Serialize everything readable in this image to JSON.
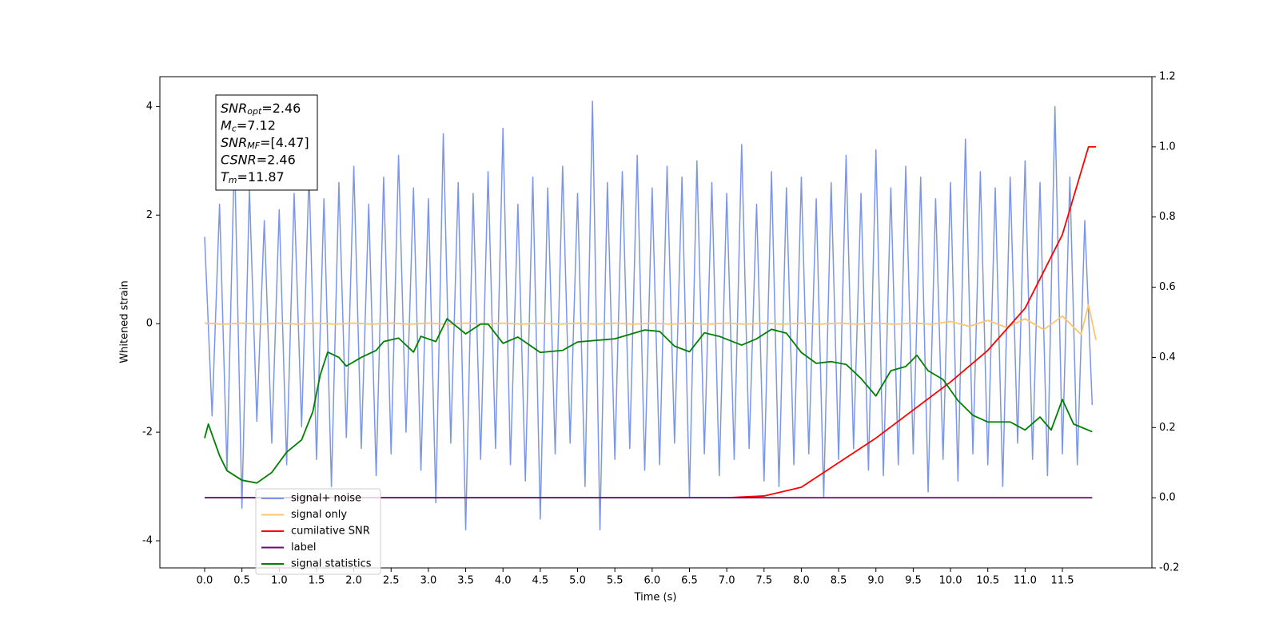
{
  "chart_data": {
    "type": "line",
    "xlabel": "Time (s)",
    "ylabel": "Whitened strain",
    "xlim": [
      -0.6,
      12.7
    ],
    "ylim": [
      -4.5,
      4.55
    ],
    "y2lim": [
      -0.2,
      1.2
    ],
    "xticks": [
      {
        "value": 0,
        "label": "0.0"
      },
      0.5,
      {
        "value": 1,
        "label": "1.0"
      },
      1.5,
      {
        "value": 2,
        "label": "2.0"
      },
      2.5,
      {
        "value": 3,
        "label": "3.0"
      },
      3.5,
      {
        "value": 4,
        "label": "4.0"
      },
      4.5,
      {
        "value": 5,
        "label": "5.0"
      },
      5.5,
      {
        "value": 6,
        "label": "6.0"
      },
      6.5,
      {
        "value": 7,
        "label": "7.0"
      },
      7.5,
      {
        "value": 8,
        "label": "8.0"
      },
      8.5,
      {
        "value": 9,
        "label": "9.0"
      },
      9.5,
      {
        "value": 10,
        "label": "10.0"
      },
      10.5,
      {
        "value": 11,
        "label": "11.0"
      },
      11.5
    ],
    "yticks": [
      -4,
      -2,
      0,
      2,
      4
    ],
    "y2ticks": [
      -0.2,
      {
        "value": 0,
        "label": "0.0"
      },
      0.2,
      0.4,
      0.6,
      0.8,
      {
        "value": 1,
        "label": "1.0"
      },
      1.2
    ],
    "legend": "lower left",
    "annotation": [
      {
        "symbol": "SNR",
        "sub": "opt",
        "text": "=2.46"
      },
      {
        "symbol": "M",
        "sub": "c",
        "text": "=7.12"
      },
      {
        "symbol": "SNR",
        "sub": "MF",
        "text": "=[4.47]"
      },
      {
        "symbol": "CSNR",
        "text": "=2.46"
      },
      {
        "symbol": "T",
        "sub": "m",
        "text": "=11.87"
      }
    ],
    "series": [
      {
        "name": "signal+ noise",
        "color": "#7b96e8",
        "axis": "y",
        "x": [
          0.0,
          0.1,
          0.2,
          0.3,
          0.4,
          0.5,
          0.6,
          0.7,
          0.8,
          0.9,
          1.0,
          1.1,
          1.2,
          1.3,
          1.4,
          1.5,
          1.6,
          1.7,
          1.8,
          1.9,
          2.0,
          2.1,
          2.2,
          2.3,
          2.4,
          2.5,
          2.6,
          2.7,
          2.8,
          2.9,
          3.0,
          3.1,
          3.2,
          3.3,
          3.4,
          3.5,
          3.6,
          3.7,
          3.8,
          3.9,
          4.0,
          4.1,
          4.2,
          4.3,
          4.4,
          4.5,
          4.6,
          4.7,
          4.8,
          4.9,
          5.0,
          5.1,
          5.2,
          5.3,
          5.4,
          5.5,
          5.6,
          5.7,
          5.8,
          5.9,
          6.0,
          6.1,
          6.2,
          6.3,
          6.4,
          6.5,
          6.6,
          6.7,
          6.8,
          6.9,
          7.0,
          7.1,
          7.2,
          7.3,
          7.4,
          7.5,
          7.6,
          7.7,
          7.8,
          7.9,
          8.0,
          8.1,
          8.2,
          8.3,
          8.4,
          8.5,
          8.6,
          8.7,
          8.8,
          8.9,
          9.0,
          9.1,
          9.2,
          9.3,
          9.4,
          9.5,
          9.6,
          9.7,
          9.8,
          9.9,
          10.0,
          10.1,
          10.2,
          10.3,
          10.4,
          10.5,
          10.6,
          10.7,
          10.8,
          10.9,
          11.0,
          11.1,
          11.2,
          11.3,
          11.4,
          11.5,
          11.6,
          11.7,
          11.8,
          11.9
        ],
        "values": [
          1.6,
          -1.7,
          2.2,
          -2.7,
          3.2,
          -3.4,
          2.5,
          -1.8,
          1.9,
          -2.2,
          2.1,
          -2.6,
          2.4,
          -1.9,
          2.8,
          -2.5,
          2.3,
          -3.0,
          2.6,
          -2.1,
          2.9,
          -2.3,
          2.2,
          -2.8,
          2.7,
          -2.4,
          3.1,
          -2.0,
          2.5,
          -2.7,
          2.3,
          -3.3,
          3.5,
          -2.2,
          2.6,
          -3.8,
          2.4,
          -2.5,
          2.8,
          -2.3,
          3.6,
          -2.6,
          2.2,
          -2.9,
          2.7,
          -3.6,
          2.5,
          -2.4,
          2.9,
          -2.2,
          2.4,
          -3.0,
          4.1,
          -3.8,
          2.6,
          -2.5,
          2.8,
          -2.3,
          3.1,
          -2.7,
          2.5,
          -2.6,
          2.9,
          -2.2,
          2.7,
          -3.2,
          3.0,
          -2.4,
          2.6,
          -2.8,
          2.4,
          -2.5,
          3.3,
          -2.3,
          2.2,
          -2.9,
          2.8,
          -3.0,
          2.5,
          -2.6,
          2.7,
          -2.4,
          2.3,
          -3.2,
          2.6,
          -2.5,
          3.1,
          -2.3,
          2.4,
          -2.7,
          3.2,
          -2.8,
          2.5,
          -2.6,
          2.9,
          -2.4,
          2.7,
          -3.1,
          2.3,
          -2.5,
          2.6,
          -2.9,
          3.4,
          -2.4,
          2.8,
          -2.6,
          2.5,
          -3.0,
          2.7,
          -2.2,
          3.0,
          -2.5,
          2.6,
          -2.8,
          4.0,
          -2.4,
          2.7,
          -2.6,
          1.9,
          -1.5
        ]
      },
      {
        "name": "signal only",
        "color": "#ffc46b",
        "axis": "y",
        "x": [
          0,
          0.25,
          0.5,
          0.75,
          1,
          1.25,
          1.5,
          1.75,
          2,
          2.25,
          2.5,
          2.75,
          3,
          3.25,
          3.5,
          3.75,
          4,
          4.25,
          4.5,
          4.75,
          5,
          5.25,
          5.5,
          5.75,
          6,
          6.25,
          6.5,
          6.75,
          7,
          7.25,
          7.5,
          7.75,
          8,
          8.25,
          8.5,
          8.75,
          9,
          9.25,
          9.5,
          9.75,
          10,
          10.25,
          10.5,
          10.75,
          11,
          11.25,
          11.5,
          11.75,
          11.85,
          11.95
        ],
        "values": [
          0.01,
          -0.01,
          0.01,
          -0.01,
          0.01,
          -0.01,
          0.01,
          -0.01,
          0.01,
          -0.01,
          0.01,
          -0.01,
          0.01,
          -0.01,
          0.01,
          -0.01,
          0.01,
          -0.01,
          0.01,
          -0.01,
          0.01,
          -0.01,
          0.01,
          -0.01,
          0.01,
          -0.01,
          0.01,
          -0.01,
          0.01,
          -0.01,
          0.01,
          -0.01,
          0.01,
          -0.01,
          0.01,
          -0.01,
          0.01,
          -0.01,
          0.01,
          -0.01,
          0.04,
          -0.05,
          0.06,
          -0.07,
          0.09,
          -0.11,
          0.14,
          -0.2,
          0.35,
          -0.3
        ]
      },
      {
        "name": "cumilative SNR",
        "color": "#ff0000",
        "axis": "y2",
        "x": [
          0,
          7.0,
          7.5,
          8.0,
          8.5,
          9.0,
          9.5,
          10.0,
          10.5,
          11.0,
          11.5,
          11.85,
          11.95
        ],
        "values": [
          0,
          0,
          0.005,
          0.03,
          0.1,
          0.17,
          0.25,
          0.33,
          0.42,
          0.54,
          0.75,
          1.0,
          1.0
        ]
      },
      {
        "name": "label",
        "color": "#6a0d6f",
        "axis": "y2",
        "x": [
          0,
          11.9
        ],
        "values": [
          0,
          0
        ]
      },
      {
        "name": "signal statistics",
        "color": "#008000",
        "axis": "y2",
        "x": [
          0,
          0.05,
          0.2,
          0.3,
          0.5,
          0.7,
          0.9,
          1.1,
          1.3,
          1.45,
          1.55,
          1.65,
          1.8,
          1.9,
          2.1,
          2.3,
          2.4,
          2.6,
          2.8,
          2.9,
          3.1,
          3.25,
          3.5,
          3.7,
          3.8,
          4.0,
          4.2,
          4.5,
          4.8,
          5.0,
          5.5,
          5.9,
          6.1,
          6.3,
          6.5,
          6.7,
          6.9,
          7.2,
          7.4,
          7.6,
          7.8,
          8.0,
          8.2,
          8.4,
          8.6,
          8.8,
          9.0,
          9.2,
          9.4,
          9.55,
          9.7,
          9.9,
          10.1,
          10.3,
          10.5,
          10.8,
          11.0,
          11.2,
          11.35,
          11.5,
          11.65,
          11.9
        ],
        "values": [
          0.17,
          0.21,
          0.12,
          0.077,
          0.05,
          0.042,
          0.072,
          0.13,
          0.165,
          0.245,
          0.35,
          0.415,
          0.4,
          0.375,
          0.4,
          0.42,
          0.445,
          0.455,
          0.415,
          0.46,
          0.445,
          0.51,
          0.467,
          0.495,
          0.495,
          0.44,
          0.458,
          0.414,
          0.42,
          0.444,
          0.453,
          0.478,
          0.474,
          0.432,
          0.416,
          0.47,
          0.46,
          0.435,
          0.453,
          0.48,
          0.469,
          0.414,
          0.383,
          0.388,
          0.38,
          0.34,
          0.29,
          0.362,
          0.374,
          0.406,
          0.362,
          0.337,
          0.277,
          0.235,
          0.216,
          0.216,
          0.193,
          0.23,
          0.193,
          0.28,
          0.21,
          0.188
        ]
      }
    ]
  }
}
